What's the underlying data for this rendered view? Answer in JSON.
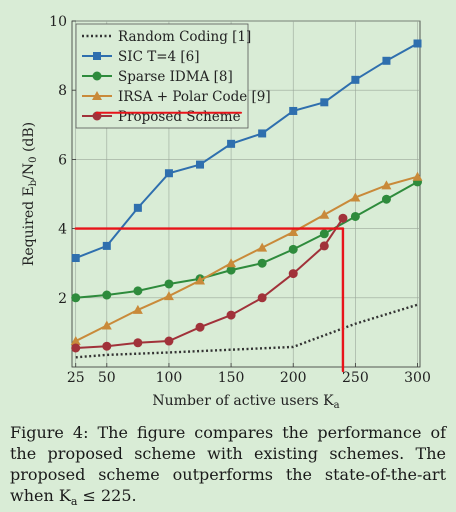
{
  "chart_data": {
    "type": "line",
    "xlabel": "Number of active users K",
    "xlabel_sub": "a",
    "ylabel": "Required E",
    "ylabel_sub": "b",
    "ylabel_mid": "/N",
    "ylabel_sub2": "0",
    "ylabel_tail": " (dB)",
    "xlim": [
      22,
      302
    ],
    "ylim": [
      0,
      10
    ],
    "xticks": [
      25,
      50,
      100,
      150,
      200,
      250,
      300
    ],
    "yticks": [
      2,
      4,
      6,
      8,
      10
    ],
    "grid": true,
    "legend_position": "top-left",
    "series": [
      {
        "name": "Random Coding [1]",
        "color": "#333333",
        "style": "dotted",
        "marker": "none",
        "x": [
          25,
          50,
          100,
          150,
          200,
          250,
          300
        ],
        "y": [
          0.28,
          0.35,
          0.42,
          0.5,
          0.58,
          1.25,
          1.8
        ]
      },
      {
        "name": "SIC T=4 [6]",
        "color": "#2f6fae",
        "style": "solid",
        "marker": "square",
        "x": [
          25,
          50,
          75,
          100,
          125,
          150,
          175,
          200,
          225,
          250,
          275,
          300
        ],
        "y": [
          3.15,
          3.5,
          4.6,
          5.6,
          5.85,
          6.45,
          6.75,
          7.4,
          7.65,
          8.3,
          8.85,
          9.35
        ]
      },
      {
        "name": "Sparse IDMA [8]",
        "color": "#2e8b3c",
        "style": "solid",
        "marker": "circle",
        "x": [
          25,
          50,
          75,
          100,
          125,
          150,
          175,
          200,
          225,
          250,
          275,
          300
        ],
        "y": [
          2.0,
          2.08,
          2.2,
          2.4,
          2.55,
          2.8,
          3.0,
          3.4,
          3.85,
          4.35,
          4.85,
          5.35
        ]
      },
      {
        "name": "IRSA + Polar Code [9]",
        "color": "#c98a3a",
        "style": "solid",
        "marker": "triangle",
        "x": [
          25,
          50,
          75,
          100,
          125,
          150,
          175,
          200,
          225,
          250,
          275,
          300
        ],
        "y": [
          0.75,
          1.2,
          1.65,
          2.05,
          2.5,
          3.0,
          3.45,
          3.9,
          4.4,
          4.9,
          5.25,
          5.5
        ]
      },
      {
        "name": "Proposed Scheme",
        "color": "#a1323a",
        "style": "solid",
        "marker": "circle",
        "x": [
          25,
          50,
          75,
          100,
          125,
          150,
          175,
          200,
          225,
          240
        ],
        "y": [
          0.55,
          0.6,
          0.7,
          0.75,
          1.15,
          1.5,
          2.0,
          2.7,
          3.5,
          4.3
        ]
      }
    ],
    "annotations": {
      "color": "#e8141a",
      "threshold_y": 4.0,
      "threshold_x_start": 25,
      "threshold_x_end": 240,
      "vertical_x": 240,
      "underline_y": 7.35,
      "underline_x_start": 42,
      "underline_x_end": 158
    }
  },
  "caption": "Figure 4: The figure compares the performance of the proposed scheme with existing schemes. The proposed scheme outperforms the state-of-the-art when K",
  "caption_sub": "a",
  "caption_tail": " ≤ 225."
}
